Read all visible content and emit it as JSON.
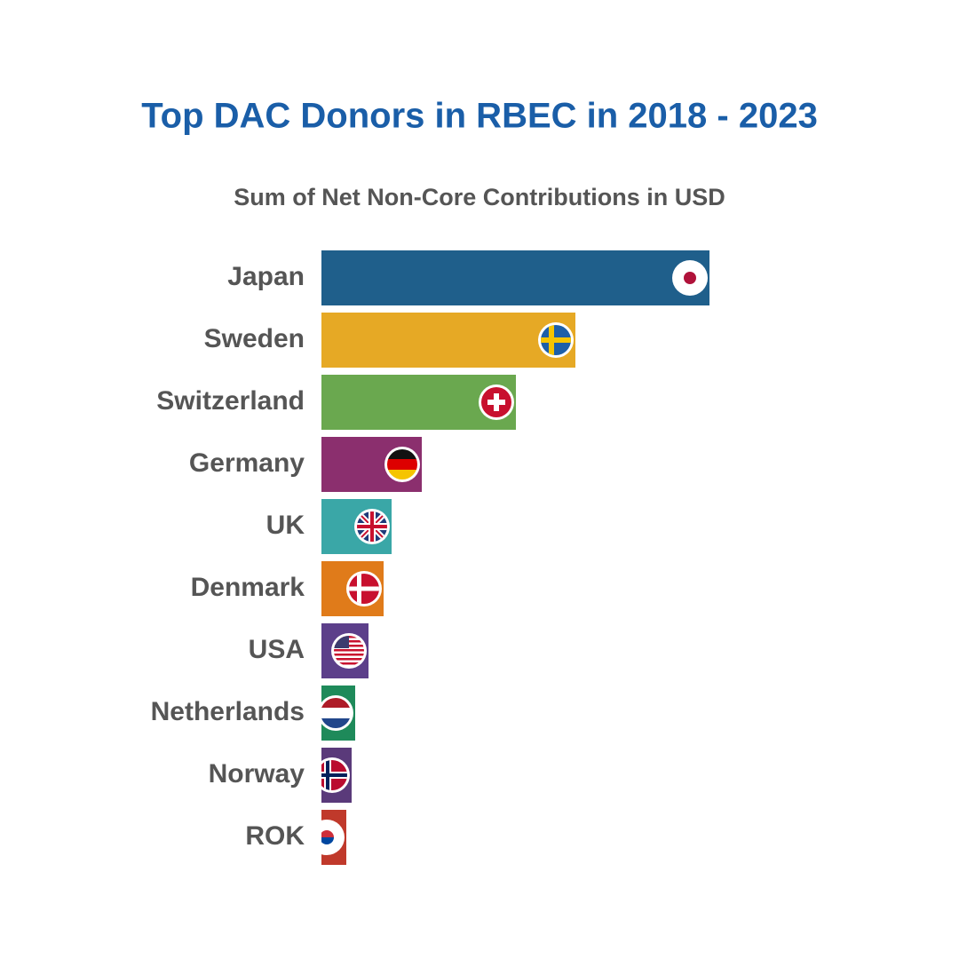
{
  "chart_data": {
    "type": "hbar",
    "title": "Top DAC Donors in RBEC in 2018 - 2023",
    "subtitle": "Sum of Net Non-Core Contributions in USD",
    "categories": [
      "Japan",
      "Sweden",
      "Switzerland",
      "Germany",
      "UK",
      "Denmark",
      "USA",
      "Netherlands",
      "Norway",
      "ROK"
    ],
    "values": [
      437,
      286,
      219,
      113,
      79,
      70,
      53,
      38,
      34,
      28
    ],
    "colors": [
      "#1f5f8b",
      "#e6a925",
      "#6aa84f",
      "#8b2f6e",
      "#3aa7a7",
      "#e07b1a",
      "#5c3f8a",
      "#1e8a5a",
      "#5a3a7a",
      "#c0392b"
    ],
    "xlim": [
      0,
      500
    ]
  }
}
